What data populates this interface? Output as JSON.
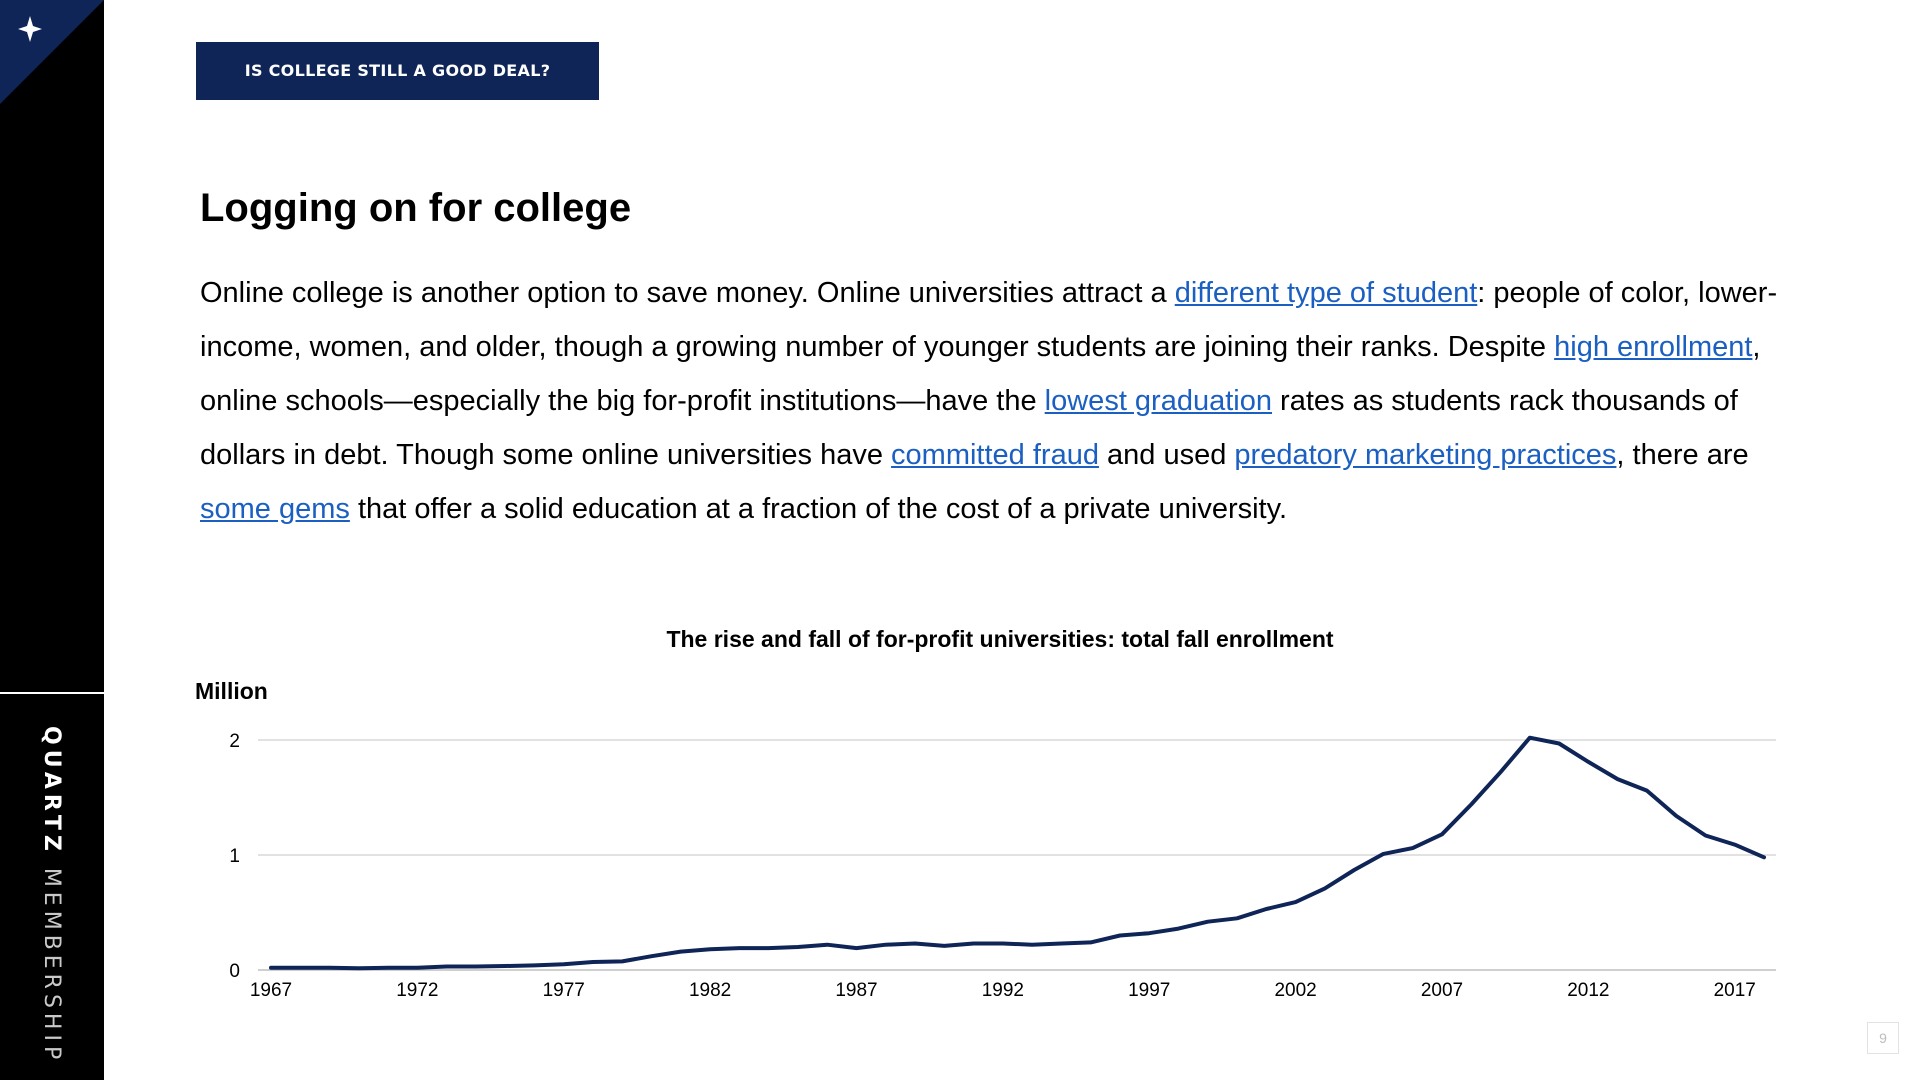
{
  "header": {
    "section_tag": "IS COLLEGE STILL A GOOD DEAL?"
  },
  "sidebar": {
    "corner_icon": "sparkle-icon",
    "brand_strong": "QUARTZ",
    "brand_light": "MEMBERSHIP"
  },
  "slide": {
    "title": "Logging on for college",
    "page_number": "9"
  },
  "body": {
    "t1": "Online college is another option to save money. Online universities attract a ",
    "link1": "different type of student",
    "t2": ": people of color, lower-income, women, and older, though a growing number of younger students are joining their ranks. Despite ",
    "link2": "high enrollment",
    "t3": ", online schools—especially the big for-profit institutions—have the ",
    "link3": "lowest graduation",
    "t4": " rates as students rack thousands of dollars in debt. Though some online universities have ",
    "link4": "committed fraud",
    "t5": " and used ",
    "link5": "predatory marketing practices",
    "t6": ", there are ",
    "link6": "some gems",
    "t7": " that offer a solid education at a fraction of the cost of a private university."
  },
  "colors": {
    "navy": "#0f2557",
    "link": "#1a5fc1",
    "gridline": "#d9d9d9"
  },
  "chart_data": {
    "type": "line",
    "title": "The rise and fall of for-profit universities: total fall enrollment",
    "ylabel": "Million",
    "xlabel": "",
    "ylim": [
      0,
      2
    ],
    "yticks": [
      "0",
      "1",
      "2"
    ],
    "xticks": [
      "1967",
      "1972",
      "1977",
      "1982",
      "1987",
      "1992",
      "1997",
      "2002",
      "2007",
      "2012",
      "2017"
    ],
    "grid": true,
    "x": [
      1967,
      1968,
      1969,
      1970,
      1971,
      1972,
      1973,
      1974,
      1975,
      1976,
      1977,
      1978,
      1979,
      1980,
      1981,
      1982,
      1983,
      1984,
      1985,
      1986,
      1987,
      1988,
      1989,
      1990,
      1991,
      1992,
      1993,
      1994,
      1995,
      1996,
      1997,
      1998,
      1999,
      2000,
      2001,
      2002,
      2003,
      2004,
      2005,
      2006,
      2007,
      2008,
      2009,
      2010,
      2011,
      2012,
      2013,
      2014,
      2015,
      2016,
      2017,
      2018
    ],
    "series": [
      {
        "values": [
          0.02,
          0.02,
          0.02,
          0.015,
          0.02,
          0.02,
          0.03,
          0.03,
          0.035,
          0.04,
          0.05,
          0.07,
          0.075,
          0.12,
          0.16,
          0.18,
          0.19,
          0.19,
          0.2,
          0.22,
          0.19,
          0.22,
          0.23,
          0.21,
          0.23,
          0.23,
          0.22,
          0.23,
          0.24,
          0.3,
          0.32,
          0.36,
          0.42,
          0.45,
          0.53,
          0.59,
          0.71,
          0.87,
          1.01,
          1.06,
          1.18,
          1.44,
          1.72,
          2.02,
          1.97,
          1.81,
          1.66,
          1.56,
          1.34,
          1.17,
          1.09,
          0.98
        ]
      }
    ]
  }
}
